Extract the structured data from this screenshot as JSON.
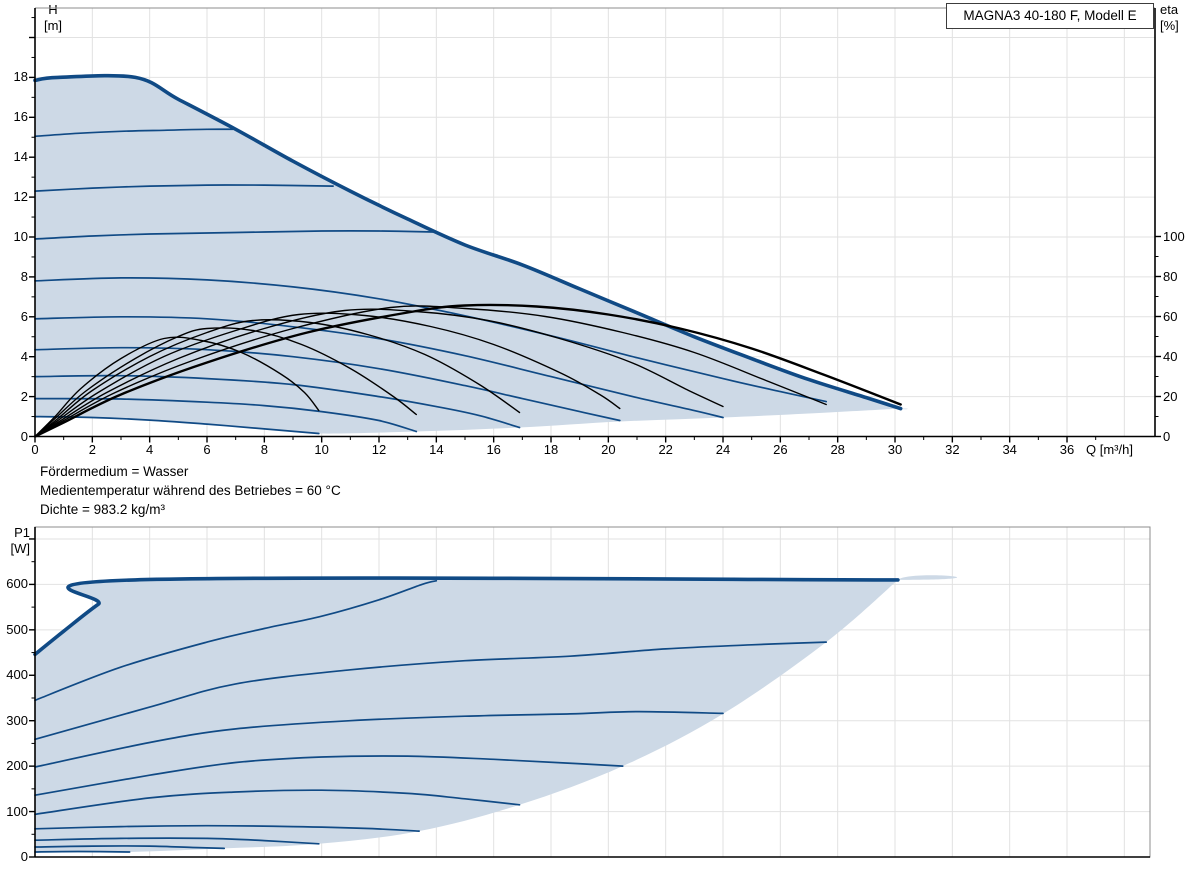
{
  "title_box": "MAGNA3 40-180 F, Modell E",
  "annotations": [
    "Fördermedium = Wasser",
    "Medientemperatur während des Betriebes = 60 °C",
    "Dichte = 983.2 kg/m³"
  ],
  "colors": {
    "curve_blue": "#104a85",
    "fill_blue": "#cdd9e6",
    "efficiency_black": "#000000",
    "grid": "#e2e2e2",
    "frame_gray": "#8c8c8c",
    "axis_black": "#000000"
  },
  "chart_data": [
    {
      "id": "hq-eta-chart",
      "type": "line",
      "title": "MAGNA3 40-180 F, Modell E",
      "x_axis": {
        "label": "Q [m³/h]",
        "ticks": [
          0,
          2,
          4,
          6,
          8,
          10,
          12,
          14,
          16,
          18,
          20,
          22,
          24,
          26,
          28,
          30,
          32,
          34,
          36
        ],
        "range": [
          0,
          39.1
        ]
      },
      "y_axis_left": {
        "label_line1": "H",
        "label_line2": "[m]",
        "ticks": [
          0,
          2,
          4,
          6,
          8,
          10,
          12,
          14,
          16,
          18
        ],
        "range": [
          0,
          21.5
        ]
      },
      "y_axis_right": {
        "label_line1": "eta",
        "label_line2": "[%]",
        "ticks": [
          0,
          20,
          40,
          60,
          80,
          100
        ],
        "range": [
          0,
          100
        ]
      },
      "grid": "on",
      "max_curve": [
        [
          0,
          17.85
        ],
        [
          0.8,
          18.0
        ],
        [
          3.5,
          18.0
        ],
        [
          5,
          16.9
        ],
        [
          7,
          15.4
        ],
        [
          9,
          13.8
        ],
        [
          11,
          12.3
        ],
        [
          13,
          10.9
        ],
        [
          15,
          9.6
        ],
        [
          17,
          8.6
        ],
        [
          19,
          7.4
        ],
        [
          21,
          6.2
        ],
        [
          23,
          5.0
        ],
        [
          25,
          3.9
        ],
        [
          27,
          2.85
        ],
        [
          29,
          1.95
        ],
        [
          30.2,
          1.4
        ]
      ],
      "speed_curves": [
        [
          [
            0,
            1.0
          ],
          [
            2,
            0.95
          ],
          [
            4,
            0.82
          ],
          [
            6,
            0.62
          ],
          [
            8,
            0.38
          ],
          [
            9.9,
            0.15
          ]
        ],
        [
          [
            0,
            1.9
          ],
          [
            3,
            1.88
          ],
          [
            6,
            1.72
          ],
          [
            8,
            1.55
          ],
          [
            10,
            1.25
          ],
          [
            12,
            0.8
          ],
          [
            13.3,
            0.25
          ]
        ],
        [
          [
            0,
            3.0
          ],
          [
            3,
            3.05
          ],
          [
            6,
            2.9
          ],
          [
            9,
            2.6
          ],
          [
            12,
            2.0
          ],
          [
            14,
            1.5
          ],
          [
            15.5,
            1.05
          ],
          [
            16.9,
            0.45
          ]
        ],
        [
          [
            0,
            4.35
          ],
          [
            3,
            4.45
          ],
          [
            6,
            4.35
          ],
          [
            9,
            4.0
          ],
          [
            12,
            3.4
          ],
          [
            15,
            2.55
          ],
          [
            17,
            1.9
          ],
          [
            19,
            1.25
          ],
          [
            20.4,
            0.8
          ]
        ],
        [
          [
            0,
            5.9
          ],
          [
            3,
            6.0
          ],
          [
            6,
            5.9
          ],
          [
            9,
            5.5
          ],
          [
            12,
            4.9
          ],
          [
            15,
            4.05
          ],
          [
            18,
            3.0
          ],
          [
            21,
            1.95
          ],
          [
            23,
            1.3
          ],
          [
            24,
            0.95
          ]
        ],
        [
          [
            0,
            7.8
          ],
          [
            3,
            7.95
          ],
          [
            6,
            7.85
          ],
          [
            9,
            7.5
          ],
          [
            12,
            6.9
          ],
          [
            15,
            6.05
          ],
          [
            18,
            5.05
          ],
          [
            21,
            3.95
          ],
          [
            24,
            2.9
          ],
          [
            26,
            2.25
          ],
          [
            27.6,
            1.75
          ]
        ],
        [
          [
            0,
            9.9
          ],
          [
            2,
            10.05
          ],
          [
            4,
            10.15
          ],
          [
            6,
            10.2
          ],
          [
            8,
            10.25
          ],
          [
            10,
            10.3
          ],
          [
            12,
            10.3
          ],
          [
            13.9,
            10.25
          ]
        ],
        [
          [
            0,
            12.3
          ],
          [
            2,
            12.45
          ],
          [
            4,
            12.55
          ],
          [
            6,
            12.6
          ],
          [
            8,
            12.6
          ],
          [
            10.4,
            12.55
          ]
        ],
        [
          [
            0,
            15.05
          ],
          [
            1.5,
            15.2
          ],
          [
            3,
            15.3
          ],
          [
            4.5,
            15.35
          ],
          [
            6,
            15.4
          ],
          [
            6.9,
            15.4
          ]
        ]
      ],
      "lower_boundary": [
        [
          0,
          1.0
        ],
        [
          2,
          0.95
        ],
        [
          4,
          0.82
        ],
        [
          6,
          0.62
        ],
        [
          8,
          0.38
        ],
        [
          9.9,
          0.15
        ],
        [
          13.3,
          0.25
        ],
        [
          16.9,
          0.45
        ],
        [
          20.4,
          0.75
        ],
        [
          24,
          0.95
        ],
        [
          27.6,
          1.2
        ],
        [
          30.2,
          1.4
        ]
      ],
      "efficiency_curves": [
        [
          [
            0,
            0
          ],
          [
            0.7,
            10
          ],
          [
            1.6,
            24
          ],
          [
            3,
            39
          ],
          [
            4.5,
            49
          ],
          [
            5.8,
            48
          ],
          [
            7.2,
            42
          ],
          [
            8.6,
            31
          ],
          [
            9.4,
            22
          ],
          [
            9.9,
            13
          ]
        ],
        [
          [
            0,
            0
          ],
          [
            0.7,
            9
          ],
          [
            1.8,
            23
          ],
          [
            3.5,
            39
          ],
          [
            5,
            50
          ],
          [
            6,
            54
          ],
          [
            7.6,
            53
          ],
          [
            9.3,
            46
          ],
          [
            11,
            34
          ],
          [
            12.5,
            20
          ],
          [
            13.3,
            11
          ]
        ],
        [
          [
            0,
            0
          ],
          [
            0.8,
            9
          ],
          [
            2,
            23
          ],
          [
            4,
            40
          ],
          [
            6,
            52
          ],
          [
            7.6,
            58
          ],
          [
            9.6,
            57
          ],
          [
            11.6,
            51
          ],
          [
            13.6,
            41
          ],
          [
            15.5,
            26
          ],
          [
            16.9,
            12
          ]
        ],
        [
          [
            0,
            0
          ],
          [
            0.8,
            8
          ],
          [
            2.2,
            22
          ],
          [
            4.5,
            40
          ],
          [
            7,
            53
          ],
          [
            9.2,
            61
          ],
          [
            11.5,
            60.5
          ],
          [
            13.8,
            55
          ],
          [
            16,
            46
          ],
          [
            18.3,
            32
          ],
          [
            19.7,
            21
          ],
          [
            20.4,
            14
          ]
        ],
        [
          [
            0,
            0
          ],
          [
            0.9,
            8
          ],
          [
            2.5,
            22
          ],
          [
            5,
            39
          ],
          [
            8,
            54
          ],
          [
            10.8,
            63
          ],
          [
            13.3,
            62.5
          ],
          [
            15.8,
            58
          ],
          [
            18.3,
            49
          ],
          [
            20.8,
            37
          ],
          [
            22.8,
            23
          ],
          [
            24,
            15
          ]
        ],
        [
          [
            0,
            0
          ],
          [
            1,
            8
          ],
          [
            2.8,
            22
          ],
          [
            5.5,
            38
          ],
          [
            9,
            54
          ],
          [
            12.4,
            64.5
          ],
          [
            15,
            64
          ],
          [
            17.8,
            60
          ],
          [
            20.5,
            52
          ],
          [
            23,
            42
          ],
          [
            25.5,
            28
          ],
          [
            27.6,
            16
          ]
        ],
        [
          [
            0,
            0
          ],
          [
            1,
            7
          ],
          [
            3,
            21
          ],
          [
            6,
            37
          ],
          [
            9.5,
            52
          ],
          [
            13,
            62
          ],
          [
            15,
            65.5
          ],
          [
            17.5,
            65
          ],
          [
            20,
            61
          ],
          [
            22.5,
            54
          ],
          [
            25,
            44
          ],
          [
            27.5,
            31
          ],
          [
            30.2,
            16
          ]
        ]
      ]
    },
    {
      "id": "p1-chart",
      "type": "line",
      "x_axis": {
        "label": "",
        "ticks": [],
        "range": [
          0,
          38.9
        ]
      },
      "y_axis_left": {
        "label_line1": "P1",
        "label_line2": "[W]",
        "ticks": [
          0,
          100,
          200,
          300,
          400,
          500,
          600
        ],
        "range": [
          0,
          727
        ]
      },
      "grid": "on",
      "max_curve": [
        [
          0,
          446
        ],
        [
          1,
          497
        ],
        [
          2.2,
          556
        ],
        [
          3.5,
          610
        ],
        [
          30.1,
          610
        ]
      ],
      "speed_curves": [
        [
          [
            0,
            11
          ],
          [
            1.5,
            12
          ],
          [
            3.3,
            11
          ]
        ],
        [
          [
            0,
            22
          ],
          [
            2,
            24
          ],
          [
            4,
            24
          ],
          [
            5.5,
            21
          ],
          [
            6.6,
            19
          ]
        ],
        [
          [
            0,
            37
          ],
          [
            3,
            41
          ],
          [
            6,
            41
          ],
          [
            8,
            36
          ],
          [
            9.9,
            29
          ]
        ],
        [
          [
            0,
            62
          ],
          [
            3,
            67
          ],
          [
            6,
            69
          ],
          [
            9,
            67
          ],
          [
            11.5,
            63
          ],
          [
            13.4,
            57
          ]
        ],
        [
          [
            0,
            94
          ],
          [
            4,
            130
          ],
          [
            7,
            143
          ],
          [
            10,
            147
          ],
          [
            13,
            140
          ],
          [
            15,
            128
          ],
          [
            16.9,
            115
          ]
        ],
        [
          [
            0,
            136
          ],
          [
            4,
            180
          ],
          [
            7,
            208
          ],
          [
            10,
            220
          ],
          [
            13,
            222
          ],
          [
            16,
            215
          ],
          [
            18.5,
            207
          ],
          [
            20.5,
            200
          ]
        ],
        [
          [
            0,
            198
          ],
          [
            4,
            252
          ],
          [
            7,
            282
          ],
          [
            11,
            300
          ],
          [
            15,
            310
          ],
          [
            18.66,
            315
          ],
          [
            21,
            320
          ],
          [
            24,
            316
          ]
        ],
        [
          [
            0,
            259
          ],
          [
            4,
            330
          ],
          [
            7,
            381
          ],
          [
            11,
            412
          ],
          [
            15,
            432
          ],
          [
            18.66,
            442
          ],
          [
            22,
            458
          ],
          [
            25,
            467
          ],
          [
            27.6,
            473
          ]
        ],
        [
          [
            0,
            345
          ],
          [
            3,
            418
          ],
          [
            6,
            473
          ],
          [
            8,
            503
          ],
          [
            10,
            530
          ],
          [
            12,
            566
          ],
          [
            13.5,
            600
          ],
          [
            14,
            608
          ]
        ]
      ],
      "lower_boundary": [
        [
          0,
          10
        ],
        [
          3.3,
          11
        ],
        [
          6.6,
          19
        ],
        [
          9.9,
          29
        ],
        [
          13.4,
          57
        ],
        [
          16.9,
          115
        ],
        [
          20.5,
          200
        ],
        [
          24,
          315
        ],
        [
          27.6,
          473
        ],
        [
          30.1,
          610
        ]
      ]
    }
  ]
}
